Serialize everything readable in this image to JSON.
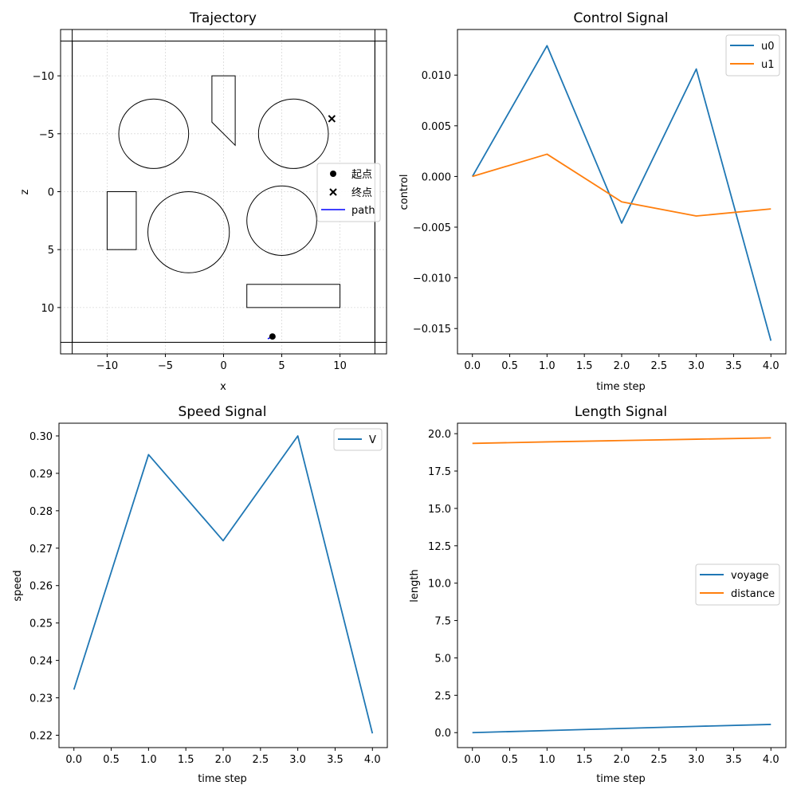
{
  "chart_data": [
    {
      "id": "trajectory",
      "type": "scatter",
      "title": "Trajectory",
      "xlabel": "x",
      "ylabel": "z",
      "xlim": [
        -14,
        14
      ],
      "ylim": [
        14,
        -14
      ],
      "y_inverted": true,
      "xticks": [
        -10,
        -5,
        0,
        5,
        10
      ],
      "yticks": [
        -10,
        -5,
        0,
        5,
        10
      ],
      "grid": true,
      "obstacles": {
        "circles": [
          {
            "cx": -6,
            "cy": -5,
            "r": 3
          },
          {
            "cx": 6,
            "cy": -5,
            "r": 3
          },
          {
            "cx": -3,
            "cy": 3.5,
            "r": 3.5
          },
          {
            "cx": 5,
            "cy": 2.5,
            "r": 3
          }
        ],
        "rects": [
          {
            "x0": -13,
            "y0": -13,
            "x1": 13,
            "y1": 13
          },
          {
            "x0": -10,
            "y0": 0,
            "x1": -7.5,
            "y1": 5
          },
          {
            "x0": 2,
            "y0": 8,
            "x1": 10,
            "y1": 10
          }
        ],
        "polygons": [
          [
            [
              -1,
              -10
            ],
            [
              1,
              -10
            ],
            [
              1,
              -4
            ],
            [
              -1,
              -6
            ]
          ]
        ],
        "hlines": [
          -13,
          13
        ],
        "vlines": [
          -13,
          13
        ]
      },
      "start": {
        "x": 4.2,
        "y": 12.5,
        "label": "起点"
      },
      "end": {
        "x": 9.3,
        "y": -6.3,
        "label": "终点"
      },
      "path": {
        "x": [
          3.8,
          4.0,
          4.2
        ],
        "y": [
          12.7,
          12.6,
          12.5
        ],
        "label": "path",
        "color": "#0000ff"
      },
      "legend": [
        "起点",
        "终点",
        "path"
      ],
      "legend_loc": "center-right"
    },
    {
      "id": "control",
      "type": "line",
      "title": "Control Signal",
      "xlabel": "time step",
      "ylabel": "control",
      "x": [
        0,
        1,
        2,
        3,
        4
      ],
      "xlim": [
        -0.2,
        4.2
      ],
      "ylim": [
        -0.0175,
        0.0145
      ],
      "xticks": [
        0.0,
        0.5,
        1.0,
        1.5,
        2.0,
        2.5,
        3.0,
        3.5,
        4.0
      ],
      "yticks": [
        -0.015,
        -0.01,
        -0.005,
        0.0,
        0.005,
        0.01
      ],
      "ytick_decimals": 3,
      "series": [
        {
          "name": "u0",
          "color": "#1f77b4",
          "values": [
            0.0,
            0.0129,
            -0.0046,
            0.0106,
            -0.0162
          ]
        },
        {
          "name": "u1",
          "color": "#ff7f0e",
          "values": [
            0.0,
            0.0022,
            -0.0025,
            -0.0039,
            -0.0032
          ]
        }
      ],
      "legend_loc": "top-right"
    },
    {
      "id": "speed",
      "type": "line",
      "title": "Speed Signal",
      "xlabel": "time step",
      "ylabel": "speed",
      "x": [
        0,
        1,
        2,
        3,
        4
      ],
      "xlim": [
        -0.2,
        4.2
      ],
      "ylim": [
        0.2167,
        0.3034
      ],
      "xticks": [
        0.0,
        0.5,
        1.0,
        1.5,
        2.0,
        2.5,
        3.0,
        3.5,
        4.0
      ],
      "yticks": [
        0.22,
        0.23,
        0.24,
        0.25,
        0.26,
        0.27,
        0.28,
        0.29,
        0.3
      ],
      "ytick_decimals": 2,
      "series": [
        {
          "name": "V",
          "color": "#1f77b4",
          "values": [
            0.2322,
            0.295,
            0.272,
            0.3,
            0.2205
          ]
        }
      ],
      "legend_loc": "top-right"
    },
    {
      "id": "length",
      "type": "line",
      "title": "Length Signal",
      "xlabel": "time step",
      "ylabel": "length",
      "x": [
        0,
        1,
        2,
        3,
        4
      ],
      "xlim": [
        -0.2,
        4.2
      ],
      "ylim": [
        -1.0,
        20.7
      ],
      "xticks": [
        0.0,
        0.5,
        1.0,
        1.5,
        2.0,
        2.5,
        3.0,
        3.5,
        4.0
      ],
      "yticks": [
        0.0,
        2.5,
        5.0,
        7.5,
        10.0,
        12.5,
        15.0,
        17.5,
        20.0
      ],
      "ytick_decimals": 1,
      "series": [
        {
          "name": "voyage",
          "color": "#1f77b4",
          "values": [
            0.0,
            0.14,
            0.28,
            0.42,
            0.55
          ]
        },
        {
          "name": "distance",
          "color": "#ff7f0e",
          "values": [
            19.35,
            19.45,
            19.54,
            19.63,
            19.72
          ]
        }
      ],
      "legend_loc": "center-right"
    }
  ]
}
